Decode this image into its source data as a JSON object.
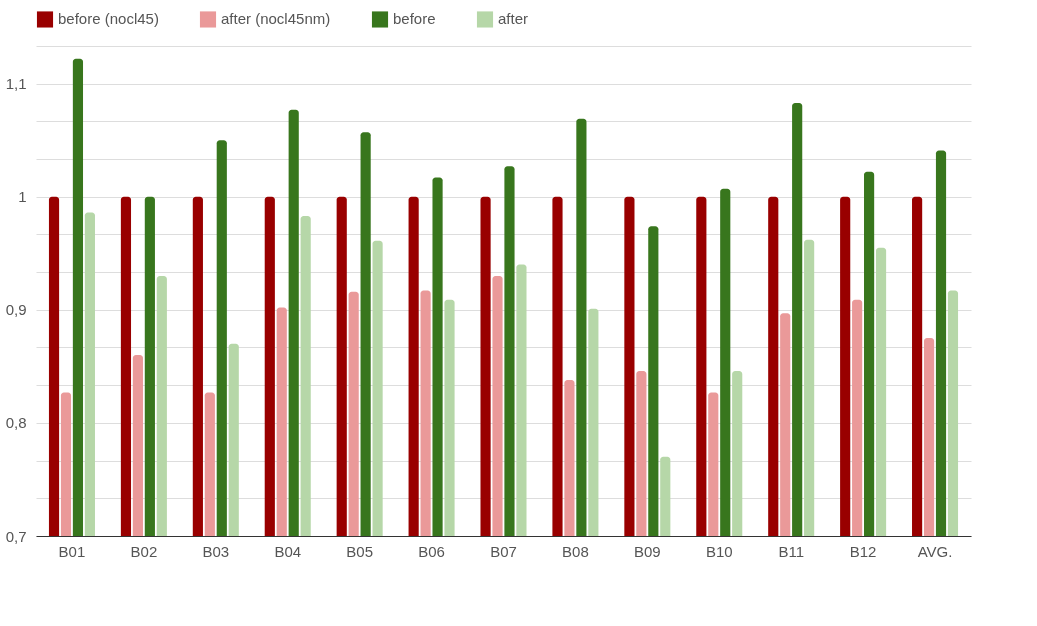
{
  "chart_data": {
    "type": "bar",
    "categories": [
      "B01",
      "B02",
      "B03",
      "B04",
      "B05",
      "B06",
      "B07",
      "B08",
      "B09",
      "B10",
      "B11",
      "B12",
      "AVG."
    ],
    "series": [
      {
        "name": "before (nocl45)",
        "color": "#990000",
        "values": [
          1,
          1,
          1,
          1,
          1,
          1,
          1,
          1,
          1,
          1,
          1,
          1,
          1
        ]
      },
      {
        "name": "after (nocl45nm)",
        "color": "#ea9999",
        "values": [
          0.827,
          0.86,
          0.827,
          0.902,
          0.916,
          0.917,
          0.93,
          0.838,
          0.846,
          0.827,
          0.897,
          0.909,
          0.875
        ]
      },
      {
        "name": "before",
        "color": "#38761d",
        "values": [
          1.122,
          1.0,
          1.05,
          1.077,
          1.057,
          1.017,
          1.027,
          1.069,
          0.974,
          1.007,
          1.083,
          1.022,
          1.041
        ]
      },
      {
        "name": "after",
        "color": "#b6d7a8",
        "values": [
          0.986,
          0.93,
          0.87,
          0.983,
          0.961,
          0.909,
          0.94,
          0.901,
          0.77,
          0.846,
          0.962,
          0.955,
          0.917
        ]
      }
    ],
    "ylim": [
      0.7,
      1.1333
    ],
    "yticks": [
      {
        "value": 0.7,
        "label": "0,7"
      },
      {
        "value": 0.7333,
        "label": null
      },
      {
        "value": 0.7667,
        "label": null
      },
      {
        "value": 0.8,
        "label": "0,8"
      },
      {
        "value": 0.8333,
        "label": null
      },
      {
        "value": 0.8667,
        "label": null
      },
      {
        "value": 0.9,
        "label": "0,9"
      },
      {
        "value": 0.9333,
        "label": null
      },
      {
        "value": 0.9667,
        "label": null
      },
      {
        "value": 1,
        "label": "1"
      },
      {
        "value": 1.0333,
        "label": null
      },
      {
        "value": 1.0667,
        "label": null
      },
      {
        "value": 1.1,
        "label": "1,1"
      },
      {
        "value": 1.1333,
        "label": null
      }
    ],
    "grid": true,
    "legend": "top"
  }
}
